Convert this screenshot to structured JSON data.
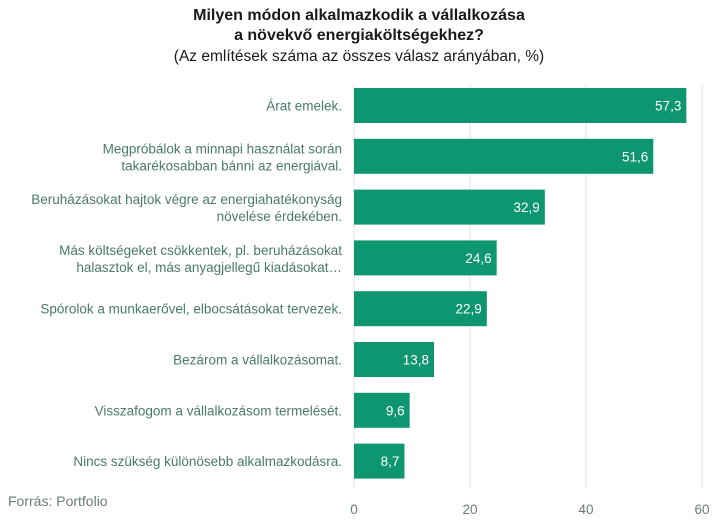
{
  "chart_data": {
    "type": "bar",
    "orientation": "horizontal",
    "title_lines": [
      "Milyen módon alkalmazkodik a vállalkozása",
      "a növekvő energiaköltségekhez?"
    ],
    "subtitle": "(Az említések száma az összes válasz arányában, %)",
    "categories": [
      [
        "Árat emelek."
      ],
      [
        "Megpróbálok a minnapi használat során",
        "takarékosabban bánni az energiával."
      ],
      [
        "Beruházásokat hajtok végre az energiahatékonyság",
        "növelése érdekében."
      ],
      [
        "Más költségeket csökkentek, pl. beruházásokat",
        "halasztok el, más anyagjellegű kiadásokat…"
      ],
      [
        "Spórolok a munkaerővel, elbocsátásokat tervezek."
      ],
      [
        "Bezárom a vállalkozásomat."
      ],
      [
        "Visszafogom a vállalkozásom termelését."
      ],
      [
        "Nincs szükség különösebb alkalmazkodásra."
      ]
    ],
    "values": [
      57.3,
      51.6,
      32.9,
      24.6,
      22.9,
      13.8,
      9.6,
      8.7
    ],
    "value_labels": [
      "57,3",
      "51,6",
      "32,9",
      "24,6",
      "22,9",
      "13,8",
      "9,6",
      "8,7"
    ],
    "xlim": [
      0,
      60
    ],
    "xticks": [
      0,
      20,
      40,
      60
    ],
    "xtick_labels": [
      "0",
      "20",
      "40",
      "60"
    ],
    "grid": true,
    "bar_color": "#0e9670"
  },
  "source": "Forrás: Portfolio"
}
